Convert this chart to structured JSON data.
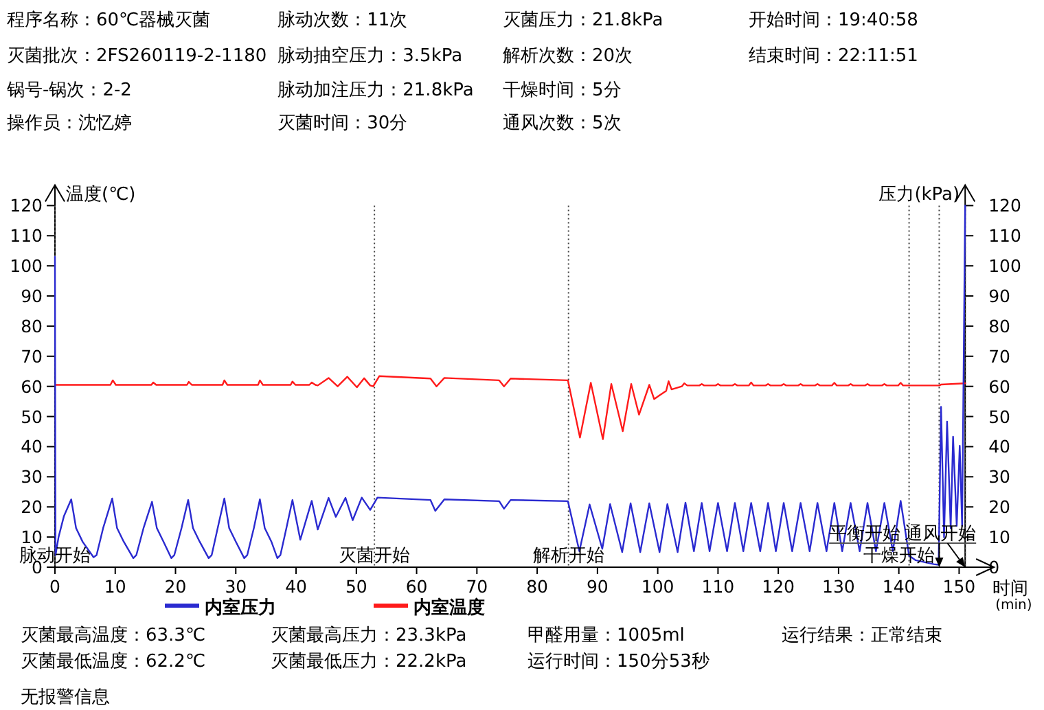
{
  "chart_data": {
    "type": "line",
    "xlabel": "时间(min)",
    "ylabel": "温度(℃)",
    "y2label": "压力(kPa)",
    "xlim": [
      0,
      151
    ],
    "xticks": [
      0,
      10,
      20,
      30,
      40,
      50,
      60,
      70,
      80,
      90,
      100,
      110,
      120,
      130,
      140,
      150
    ],
    "ylim": [
      0,
      120
    ],
    "yticks": [
      0,
      10,
      20,
      30,
      40,
      50,
      60,
      70,
      80,
      90,
      100,
      110,
      120
    ],
    "y2lim": [
      0,
      120
    ],
    "y2ticks": [
      0,
      10,
      20,
      30,
      40,
      50,
      60,
      70,
      80,
      90,
      100,
      110,
      120
    ],
    "legend": "bottom",
    "series": [
      {
        "name": "内室压力",
        "color": "#2a2ad0",
        "axis": "y2",
        "x": [
          0,
          0.1,
          0.6,
          1.5,
          2.7,
          3.5,
          4.6,
          6.4,
          6.9,
          8,
          9.5,
          10.3,
          11.4,
          13,
          13.5,
          14.7,
          16.1,
          16.9,
          18,
          19.3,
          19.8,
          21,
          22.1,
          22.9,
          24,
          25.5,
          26,
          27,
          28.1,
          28.9,
          30,
          31.4,
          31.9,
          33,
          34,
          34.8,
          35.9,
          36.9,
          37.4,
          38.4,
          39.4,
          40.7,
          42.6,
          43.6,
          45.4,
          46.6,
          48.2,
          49.4,
          50.9,
          52.3,
          53.5,
          62.3,
          63.1,
          64.6,
          73.7,
          74.5,
          75.6,
          85.1,
          87,
          88.7,
          90.8,
          92.1,
          94.1,
          95.5,
          97.1,
          98.6,
          100.3,
          101.6,
          103.3,
          104.6,
          106,
          107.3,
          108.6,
          110,
          111.5,
          112.8,
          114.2,
          115.5,
          117,
          118.3,
          119.6,
          120.9,
          122.3,
          123.7,
          125.2,
          126.5,
          128,
          129.3,
          130.6,
          132,
          133.5,
          134.8,
          136.2,
          137.6,
          139,
          140.3,
          141.7,
          142.8,
          145.8,
          146.6,
          147,
          147.5,
          148,
          148.6,
          149,
          149.6,
          150.1,
          150.5,
          151
        ],
        "values": [
          103,
          4,
          10,
          17,
          22.5,
          13,
          8.4,
          3.3,
          4,
          13,
          22.8,
          13,
          8.5,
          3,
          4,
          13,
          21.7,
          13,
          8.5,
          3,
          4,
          13,
          22.3,
          13,
          8.5,
          3,
          4,
          13,
          22.8,
          13,
          8.5,
          3,
          4,
          13,
          22.5,
          13,
          8.5,
          3,
          4,
          13,
          22.3,
          9.1,
          22,
          12.5,
          23,
          16.7,
          23,
          15.6,
          23.1,
          19,
          23.1,
          22.3,
          18.7,
          22.5,
          21.9,
          19.4,
          22.3,
          21.9,
          5.3,
          20.8,
          6.1,
          20.9,
          5,
          21.2,
          5,
          21.2,
          5,
          20.9,
          5,
          21.4,
          5.3,
          21.3,
          5.3,
          21.3,
          5.3,
          21.3,
          5.3,
          21.3,
          5.3,
          21.3,
          5.3,
          21.3,
          5.3,
          21.3,
          5.3,
          21.3,
          5.3,
          21.3,
          5.3,
          21.3,
          5.3,
          21.3,
          5.3,
          21.3,
          5.3,
          22,
          3.8,
          2.3,
          1,
          0.8,
          53.2,
          9.9,
          48.3,
          12.9,
          43.3,
          13.7,
          40.3,
          13.7,
          120
        ]
      },
      {
        "name": "内室温度",
        "color": "#ff1a1a",
        "axis": "y",
        "x": [
          0,
          9.2,
          9.6,
          10.1,
          16,
          16.3,
          16.8,
          21.9,
          22.2,
          22.7,
          27.8,
          28.1,
          28.6,
          33.7,
          34,
          34.5,
          39.1,
          39.4,
          39.9,
          42.2,
          42.6,
          43.2,
          43.6,
          45.4,
          46.9,
          48.5,
          50.1,
          51.3,
          52.3,
          52.8,
          53.8,
          62.3,
          63.3,
          64.6,
          73.7,
          74.5,
          75.6,
          85.1,
          87.1,
          88.9,
          90.9,
          92.3,
          94.2,
          95.6,
          96.9,
          98.6,
          99.4,
          100.3,
          101.4,
          101.8,
          102.3,
          104,
          104.4,
          104.9,
          106.9,
          107.3,
          107.7,
          109.6,
          110,
          110.4,
          112.4,
          112.8,
          113.2,
          115.1,
          115.5,
          115.9,
          117.9,
          118.3,
          118.7,
          120.5,
          120.9,
          121.3,
          123.3,
          123.7,
          124.1,
          126.1,
          126.5,
          126.9,
          128.9,
          129.3,
          129.7,
          131.6,
          132,
          132.4,
          134.4,
          134.8,
          135.2,
          137.2,
          137.6,
          138,
          139.9,
          140.3,
          140.7,
          141.7,
          146.7,
          147,
          151
        ],
        "values": [
          60.5,
          60.5,
          62,
          60.5,
          60.5,
          61.3,
          60.5,
          60.5,
          61.5,
          60.5,
          60.5,
          62,
          60.5,
          60.5,
          62,
          60.5,
          60.5,
          61.6,
          60.5,
          60.5,
          61.3,
          60.5,
          60.3,
          62.8,
          60,
          63.2,
          59.7,
          62.7,
          60.3,
          60,
          63.4,
          62.6,
          60,
          62.8,
          62,
          60,
          62.6,
          62,
          43,
          61.2,
          42.5,
          60.8,
          45.1,
          60.8,
          50.6,
          60.5,
          55.8,
          57,
          58.5,
          61.7,
          59,
          60,
          61,
          60.3,
          60.3,
          60.8,
          60.3,
          60.3,
          60.8,
          60.3,
          60.3,
          60.8,
          60.3,
          60.3,
          61.3,
          60.3,
          60.3,
          60.8,
          60.3,
          60.3,
          60.8,
          60.3,
          60.3,
          60.8,
          60.3,
          60.3,
          60.8,
          60.3,
          60.3,
          61.2,
          60.3,
          60.3,
          60.8,
          60.3,
          60.3,
          60.8,
          60.3,
          60.3,
          60.8,
          60.3,
          60.3,
          61.2,
          60.3,
          60.3,
          60.3,
          60.6,
          61
        ]
      }
    ],
    "ref_lines": [
      {
        "axis": "x",
        "value": 0,
        "label": "脉动开始",
        "color": "#404040",
        "line_style": "dotted"
      },
      {
        "axis": "x",
        "value": 53,
        "label": "灭菌开始",
        "color": "#404040",
        "line_style": "dotted"
      },
      {
        "axis": "x",
        "value": 85.2,
        "label": "解析开始",
        "color": "#404040",
        "line_style": "dotted"
      },
      {
        "axis": "x",
        "value": 141.7,
        "label": "干燥开始",
        "color": "#404040",
        "line_style": "dotted"
      },
      {
        "axis": "x",
        "value": 146.7,
        "label": "平衡开始",
        "color": "#404040",
        "line_style": "dotted"
      },
      {
        "axis": "x",
        "value": 151,
        "label": "通风开始",
        "color": "#404040",
        "line_style": "dotted"
      }
    ],
    "annotations": [
      "程序名称：60℃器械灭菌",
      "灭菌批次：2FS260119-2-1180",
      "锅号-锅次：2-2",
      "操作员：沈忆婷",
      "脉动次数：11次",
      "脉动抽空压力：3.5kPa",
      "脉动加注压力：21.8kPa",
      "灭菌时间：30分",
      "灭菌压力：21.8kPa",
      "解析次数：20次",
      "干燥时间：5分",
      "通风次数：5次",
      "开始时间：19:40:58",
      "结束时间：22:11:51",
      "灭菌最高温度：63.3℃",
      "灭菌最低温度：62.2℃",
      "灭菌最高压力：23.3kPa",
      "灭菌最低压力：22.2kPa",
      "甲醛用量：1005ml",
      "运行时间：150分53秒",
      "运行结果：正常结束",
      "无报警信息"
    ]
  }
}
